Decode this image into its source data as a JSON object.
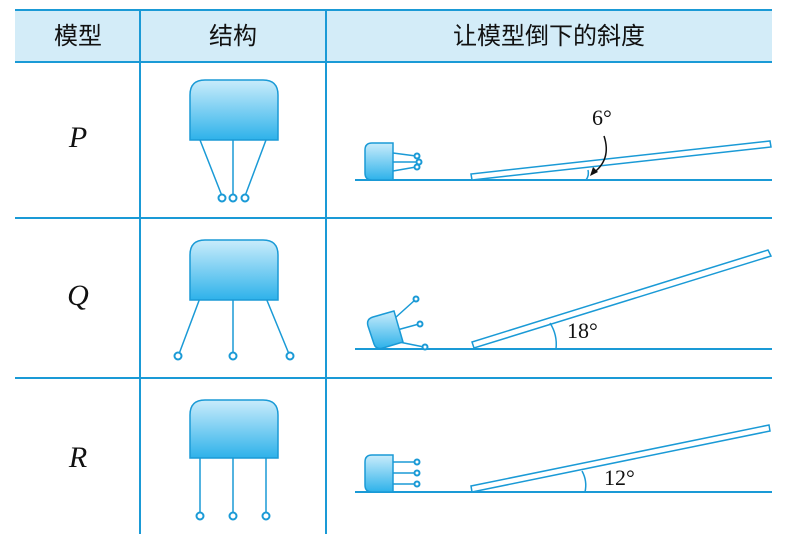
{
  "table": {
    "header": [
      "模型",
      "结构",
      "让模型倒下的斜度"
    ],
    "rows": [
      [
        "P",
        "6°"
      ],
      [
        "Q",
        "18°"
      ],
      [
        "R",
        "12°"
      ]
    ]
  }
}
